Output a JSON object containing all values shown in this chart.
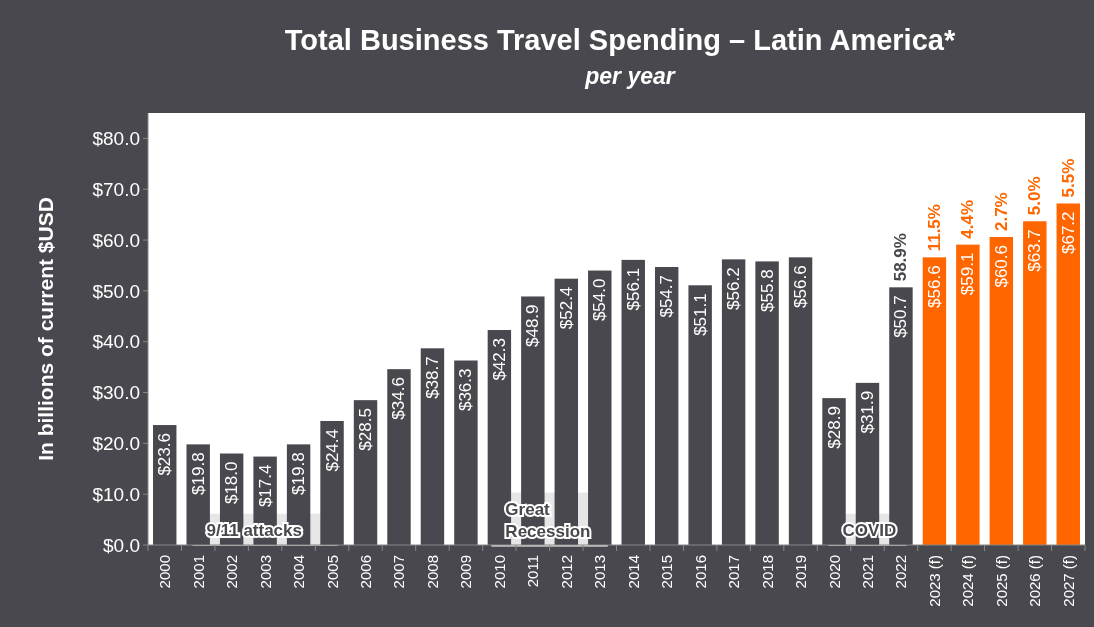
{
  "chart_data": {
    "type": "bar",
    "title": "Total Business Travel Spending – Latin America*",
    "subtitle": "per year",
    "ylabel": "In billions of current $USD",
    "categories": [
      "2000",
      "2001",
      "2002",
      "2003",
      "2004",
      "2005",
      "2006",
      "2007",
      "2008",
      "2009",
      "2010",
      "2011",
      "2012",
      "2013",
      "2014",
      "2015",
      "2016",
      "2017",
      "2018",
      "2019",
      "2020",
      "2021",
      "2022",
      "2023 (f)",
      "2024 (f)",
      "2025 (f)",
      "2026 (f)",
      "2027 (f)"
    ],
    "values": [
      23.6,
      19.8,
      18.0,
      17.4,
      19.8,
      24.4,
      28.5,
      34.6,
      38.7,
      36.3,
      42.3,
      48.9,
      52.4,
      54.0,
      56.1,
      54.7,
      51.1,
      56.2,
      55.8,
      56.6,
      28.9,
      31.9,
      50.7,
      56.6,
      59.1,
      60.6,
      63.7,
      67.2
    ],
    "value_labels": [
      "$23.6",
      "$19.8",
      "$18.0",
      "$17.4",
      "$19.8",
      "$24.4",
      "$28.5",
      "$34.6",
      "$38.7",
      "$36.3",
      "$42.3",
      "$48.9",
      "$52.4",
      "$54.0",
      "$56.1",
      "$54.7",
      "$51.1",
      "$56.2",
      "$55.8",
      "$56.6",
      "$28.9",
      "$31.9",
      "$50.7",
      "$56.6",
      "$59.1",
      "$60.6",
      "$63.7",
      "$67.2"
    ],
    "colors": [
      "#48484e",
      "#48484e",
      "#48484e",
      "#48484e",
      "#48484e",
      "#48484e",
      "#48484e",
      "#48484e",
      "#48484e",
      "#48484e",
      "#48484e",
      "#48484e",
      "#48484e",
      "#48484e",
      "#48484e",
      "#48484e",
      "#48484e",
      "#48484e",
      "#48484e",
      "#48484e",
      "#48484e",
      "#48484e",
      "#48484e",
      "#ff6600",
      "#ff6600",
      "#ff6600",
      "#ff6600",
      "#ff6600"
    ],
    "ylim": [
      0,
      85
    ],
    "yticks": [
      {
        "value": 0,
        "label": "$0.0"
      },
      {
        "value": 10,
        "label": "$10.0"
      },
      {
        "value": 20,
        "label": "$20.0"
      },
      {
        "value": 30,
        "label": "$30.0"
      },
      {
        "value": 40,
        "label": "$40.0"
      },
      {
        "value": 50,
        "label": "$50.0"
      },
      {
        "value": 60,
        "label": "$60.0"
      },
      {
        "value": 70,
        "label": "$70.0"
      },
      {
        "value": 80,
        "label": "$80.0"
      }
    ],
    "annotations": [
      {
        "text": "58.9%",
        "x": "2022",
        "y": 50.7
      },
      {
        "text": "11.5%",
        "x": "2023 (f)",
        "y": 56.6
      },
      {
        "text": "4.4%",
        "x": "2024 (f)",
        "y": 59.1
      },
      {
        "text": "2.7%",
        "x": "2025 (f)",
        "y": 60.6
      },
      {
        "text": "5.0%",
        "x": "2026 (f)",
        "y": 63.7
      },
      {
        "text": "5.5%",
        "x": "2027 (f)",
        "y": 67.2
      },
      "9/11 attacks",
      "Great\nRecession",
      "COVID"
    ],
    "grid": false
  }
}
